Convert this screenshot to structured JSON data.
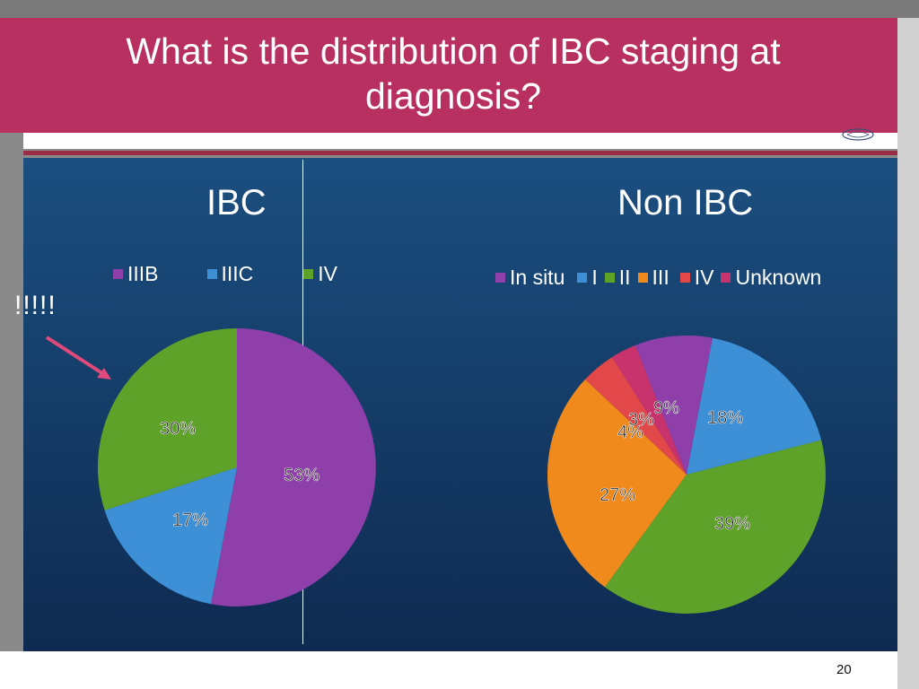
{
  "slide": {
    "title_line1": "What is the distribution of IBC staging at",
    "title_line2": "diagnosis?",
    "annotation": "!!!!!",
    "page_number": "20"
  },
  "chart_data": [
    {
      "type": "pie",
      "title": "IBC",
      "categories": [
        "IIIB",
        "IIIC",
        "IV"
      ],
      "values": [
        53,
        17,
        30
      ],
      "value_labels": [
        "53%",
        "17%",
        "30%"
      ],
      "colors": [
        "#8e3fa9",
        "#3d8fd6",
        "#5fa229"
      ],
      "legend_position": "top"
    },
    {
      "type": "pie",
      "title": "Non IBC",
      "categories": [
        "In situ",
        "I",
        "II",
        "III",
        "IV",
        "Unknown"
      ],
      "values": [
        9,
        18,
        39,
        27,
        4,
        3
      ],
      "value_labels": [
        "9%",
        "18%",
        "39%",
        "27%",
        "4%",
        "3%"
      ],
      "colors": [
        "#8e3fa9",
        "#3d8fd6",
        "#5fa229",
        "#f08a1c",
        "#e2474a",
        "#c8336e"
      ],
      "legend_position": "top"
    }
  ]
}
